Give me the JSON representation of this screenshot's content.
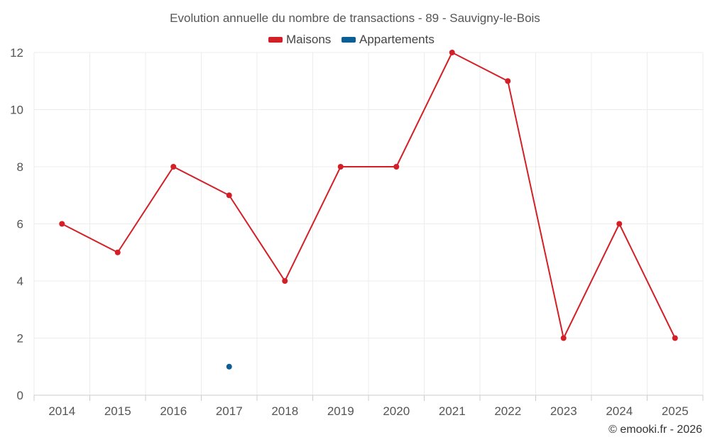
{
  "chart_data": {
    "type": "line",
    "title": "Evolution annuelle du nombre de transactions - 89 - Sauvigny-le-Bois",
    "categories": [
      "2014",
      "2015",
      "2016",
      "2017",
      "2018",
      "2019",
      "2020",
      "2021",
      "2022",
      "2023",
      "2024",
      "2025"
    ],
    "series": [
      {
        "name": "Maisons",
        "color": "#d32027",
        "values": [
          6,
          5,
          8,
          7,
          4,
          8,
          8,
          12,
          11,
          2,
          6,
          2
        ]
      },
      {
        "name": "Appartements",
        "color": "#0a5f96",
        "values": [
          null,
          null,
          null,
          1,
          null,
          null,
          null,
          null,
          null,
          null,
          null,
          null
        ]
      }
    ],
    "yticks": [
      "0",
      "2",
      "4",
      "6",
      "8",
      "10",
      "12"
    ],
    "ylim": [
      0,
      12
    ],
    "grid": true,
    "legend_position": "top-center",
    "credit": "© emooki.fr - 2026"
  }
}
